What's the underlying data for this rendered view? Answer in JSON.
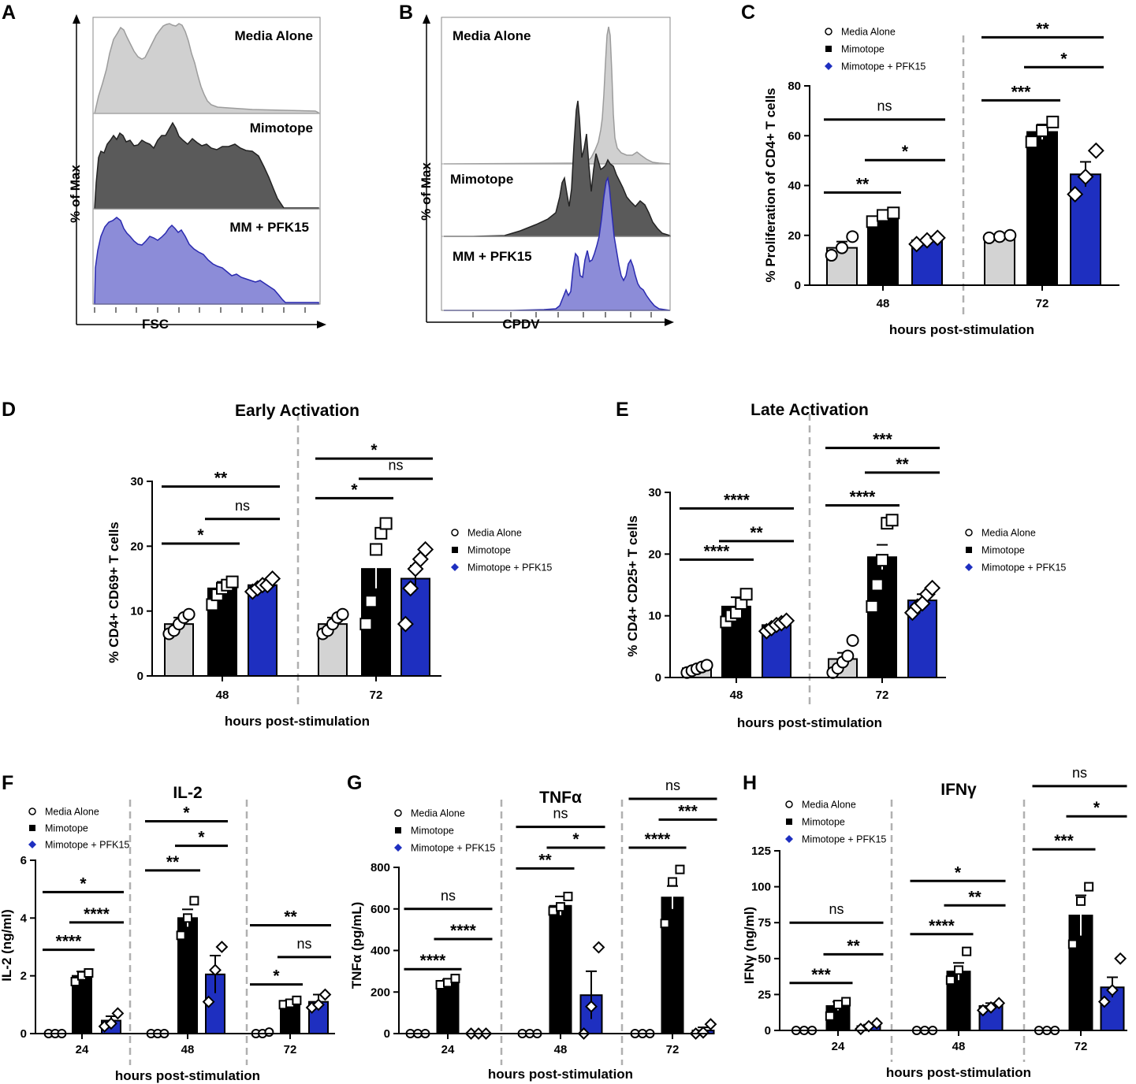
{
  "colors": {
    "media": "#d3d3d3",
    "mimotope": "#000000",
    "pfk15": "#1e2fc0",
    "hist_media": "#d0d0d0",
    "hist_media_line": "#9c9c9c",
    "hist_mimotope": "#5a5a5a",
    "hist_pfk15": "#8c8cd8",
    "hist_pfk15_line": "#2a2ab0",
    "divider": "#b0b0b0"
  },
  "legend": [
    "Media Alone",
    "Mimotope",
    "Mimotope + PFK15"
  ],
  "hist_panels": {
    "A": {
      "label": "A",
      "ylabel": "% of Max",
      "xlabel": "FSC",
      "rows": [
        "Media Alone",
        "Mimotope",
        "MM + PFK15"
      ]
    },
    "B": {
      "label": "B",
      "ylabel": "% of Max",
      "xlabel": "CPDV",
      "rows": [
        "Media Alone",
        "Mimotope",
        "MM + PFK15"
      ]
    }
  },
  "chart_data": [
    {
      "panel": "C",
      "type": "bar",
      "title": "",
      "ylabel": "% Proliferation of CD4+ T cells",
      "xlabel": "hours post-stimulation",
      "ylim": [
        0,
        80
      ],
      "yticks": [
        "0",
        "20",
        "40",
        "60",
        "80"
      ],
      "groups": [
        "48",
        "72"
      ],
      "series_names": [
        "Media Alone",
        "Mimotope",
        "Mimotope + PFK15"
      ],
      "values": [
        [
          15,
          27.5,
          18
        ],
        [
          19.5,
          61.5,
          44.5
        ]
      ],
      "errors": [
        [
          2.5,
          2,
          1
        ],
        [
          0.5,
          3,
          5
        ]
      ],
      "points": [
        [
          [
            12,
            15,
            19.5
          ],
          [
            25.5,
            28,
            29
          ],
          [
            16.5,
            18,
            19
          ]
        ],
        [
          [
            19,
            19.5,
            20
          ],
          [
            57.5,
            62,
            65.5
          ],
          [
            36.5,
            43.5,
            54
          ]
        ]
      ],
      "significance": [
        {
          "label": "ns",
          "g1": 0,
          "s1": 0,
          "g2": 0,
          "s2": 2,
          "y": 66.5
        },
        {
          "label": "**",
          "g1": 0,
          "s1": 0,
          "g2": 0,
          "s2": 1,
          "y": 37.2
        },
        {
          "label": "*",
          "g1": 0,
          "s1": 1,
          "g2": 0,
          "s2": 2,
          "y": 50.2
        },
        {
          "label": "***",
          "g1": 1,
          "s1": 0,
          "g2": 1,
          "s2": 1,
          "y": 74.2
        },
        {
          "label": "*",
          "g1": 1,
          "s1": 1,
          "g2": 1,
          "s2": 2,
          "y": 87.5
        },
        {
          "label": "**",
          "g1": 1,
          "s1": 0,
          "g2": 1,
          "s2": 2,
          "y": 99.5
        }
      ]
    },
    {
      "panel": "D",
      "type": "bar",
      "title": "Early Activation",
      "ylabel": "% CD4+ CD69+ T cells",
      "xlabel": "hours post-stimulation",
      "ylim": [
        0,
        30
      ],
      "yticks": [
        "0",
        "10",
        "20",
        "30"
      ],
      "groups": [
        "48",
        "72"
      ],
      "series_names": [
        "Media Alone",
        "Mimotope",
        "Mimotope + PFK15"
      ],
      "values": [
        [
          8,
          13.5,
          14
        ],
        [
          8,
          16.5,
          15
        ]
      ],
      "errors": [
        [
          1,
          1,
          0.5
        ],
        [
          1,
          3,
          2
        ]
      ],
      "points": [
        [
          [
            6.5,
            7,
            8,
            9,
            9.5
          ],
          [
            11,
            12.5,
            13.5,
            14,
            14.5
          ],
          [
            13,
            13.5,
            14,
            14,
            15
          ]
        ],
        [
          [
            6.5,
            7,
            8,
            9,
            9.5
          ],
          [
            8,
            11.5,
            19.5,
            22,
            23.5
          ],
          [
            8,
            13.5,
            16.5,
            18,
            19.5
          ]
        ]
      ],
      "significance": [
        {
          "label": "*",
          "g1": 0,
          "s1": 0,
          "g2": 0,
          "s2": 1,
          "y": 20.4
        },
        {
          "label": "ns",
          "g1": 0,
          "s1": 1,
          "g2": 0,
          "s2": 2,
          "y": 24.2
        },
        {
          "label": "**",
          "g1": 0,
          "s1": 0,
          "g2": 0,
          "s2": 2,
          "y": 29.2
        },
        {
          "label": "*",
          "g1": 1,
          "s1": 0,
          "g2": 1,
          "s2": 1,
          "y": 27.4
        },
        {
          "label": "ns",
          "g1": 1,
          "s1": 1,
          "g2": 1,
          "s2": 2,
          "y": 30.4
        },
        {
          "label": "*",
          "g1": 1,
          "s1": 0,
          "g2": 1,
          "s2": 2,
          "y": 33.5
        }
      ]
    },
    {
      "panel": "E",
      "type": "bar",
      "title": "Late Activation",
      "ylabel": "% CD4+ CD25+ T cells",
      "xlabel": "hours post-stimulation",
      "ylim": [
        0,
        30
      ],
      "yticks": [
        "0",
        "10",
        "20",
        "30"
      ],
      "groups": [
        "48",
        "72"
      ],
      "series_names": [
        "Media Alone",
        "Mimotope",
        "Mimotope + PFK15"
      ],
      "values": [
        [
          1.5,
          11.5,
          8.5
        ],
        [
          3,
          19.5,
          12.5
        ]
      ],
      "errors": [
        [
          0.5,
          1.5,
          0.5
        ],
        [
          1,
          2,
          1
        ]
      ],
      "points": [
        [
          [
            0.8,
            1.1,
            1.4,
            1.7,
            2
          ],
          [
            9,
            10,
            10.5,
            12,
            13.5
          ],
          [
            7.5,
            8,
            8.5,
            8.8,
            9.2
          ]
        ],
        [
          [
            0.8,
            1.5,
            2.5,
            3.5,
            6
          ],
          [
            11.5,
            15,
            19,
            25,
            25.5
          ],
          [
            10.5,
            11.5,
            12,
            13.5,
            14.5
          ]
        ]
      ],
      "significance": [
        {
          "label": "****",
          "g1": 0,
          "s1": 0,
          "g2": 0,
          "s2": 1,
          "y": 19.1
        },
        {
          "label": "**",
          "g1": 0,
          "s1": 1,
          "g2": 0,
          "s2": 2,
          "y": 22.1
        },
        {
          "label": "****",
          "g1": 0,
          "s1": 0,
          "g2": 0,
          "s2": 2,
          "y": 27.4
        },
        {
          "label": "****",
          "g1": 1,
          "s1": 0,
          "g2": 1,
          "s2": 1,
          "y": 27.9
        },
        {
          "label": "**",
          "g1": 1,
          "s1": 1,
          "g2": 1,
          "s2": 2,
          "y": 33.2
        },
        {
          "label": "***",
          "g1": 1,
          "s1": 0,
          "g2": 1,
          "s2": 2,
          "y": 37.2
        }
      ]
    },
    {
      "panel": "F",
      "type": "bar",
      "title": "IL-2",
      "ylabel": "IL-2 (ng/ml)",
      "xlabel": "hours post-stimulation",
      "ylim": [
        0,
        6
      ],
      "yticks": [
        "0",
        "2",
        "4",
        "6"
      ],
      "groups": [
        "24",
        "48",
        "72"
      ],
      "series_names": [
        "Media Alone",
        "Mimotope",
        "Mimotope + PFK15"
      ],
      "values": [
        [
          0,
          2,
          0.45
        ],
        [
          0,
          4,
          2.05
        ],
        [
          0,
          1.05,
          1.1
        ]
      ],
      "errors": [
        [
          0,
          0.15,
          0.15
        ],
        [
          0,
          0.3,
          0.65
        ],
        [
          0,
          0.1,
          0.25
        ]
      ],
      "points": [
        [
          [
            0,
            0,
            0
          ],
          [
            1.8,
            2,
            2.1
          ],
          [
            0.25,
            0.35,
            0.7
          ]
        ],
        [
          [
            0,
            0,
            0
          ],
          [
            3.4,
            4,
            4.6
          ],
          [
            1.1,
            2.2,
            3
          ]
        ],
        [
          [
            0,
            0,
            0.05
          ],
          [
            1,
            1.05,
            1.15
          ],
          [
            0.9,
            1,
            1.35
          ]
        ]
      ],
      "significance": [
        {
          "label": "****",
          "g1": 0,
          "s1": 0,
          "g2": 0,
          "s2": 1,
          "y": 2.9
        },
        {
          "label": "****",
          "g1": 0,
          "s1": 1,
          "g2": 0,
          "s2": 2,
          "y": 3.85
        },
        {
          "label": "*",
          "g1": 0,
          "s1": 0,
          "g2": 0,
          "s2": 2,
          "y": 4.9
        },
        {
          "label": "**",
          "g1": 1,
          "s1": 0,
          "g2": 1,
          "s2": 1,
          "y": 5.65
        },
        {
          "label": "*",
          "g1": 1,
          "s1": 1,
          "g2": 1,
          "s2": 2,
          "y": 6.5
        },
        {
          "label": "*",
          "g1": 1,
          "s1": 0,
          "g2": 1,
          "s2": 2,
          "y": 7.35
        },
        {
          "label": "*",
          "g1": 2,
          "s1": 0,
          "g2": 2,
          "s2": 1,
          "y": 1.7
        },
        {
          "label": "ns",
          "g1": 2,
          "s1": 1,
          "g2": 2,
          "s2": 2,
          "y": 2.65
        },
        {
          "label": "**",
          "g1": 2,
          "s1": 0,
          "g2": 2,
          "s2": 2,
          "y": 3.75
        }
      ]
    },
    {
      "panel": "G",
      "type": "bar",
      "title": "TNFα",
      "ylabel": "TNFα (pg/mL)",
      "xlabel": "hours post-stimulation",
      "ylim": [
        0,
        800
      ],
      "yticks": [
        "0",
        "200",
        "400",
        "600",
        "800"
      ],
      "groups": [
        "24",
        "48",
        "72"
      ],
      "series_names": [
        "Media Alone",
        "Mimotope",
        "Mimotope + PFK15"
      ],
      "values": [
        [
          0,
          245,
          0
        ],
        [
          0,
          615,
          185
        ],
        [
          0,
          655,
          15
        ]
      ],
      "errors": [
        [
          0,
          15,
          0
        ],
        [
          0,
          45,
          115
        ],
        [
          0,
          55,
          15
        ]
      ],
      "points": [
        [
          [
            0,
            0,
            0
          ],
          [
            235,
            245,
            265
          ],
          [
            0,
            0,
            0
          ]
        ],
        [
          [
            0,
            0,
            0
          ],
          [
            590,
            610,
            660
          ],
          [
            0,
            130,
            415
          ]
        ],
        [
          [
            0,
            0,
            0
          ],
          [
            530,
            730,
            790
          ],
          [
            0,
            5,
            45
          ]
        ]
      ],
      "significance": [
        {
          "label": "****",
          "g1": 0,
          "s1": 0,
          "g2": 0,
          "s2": 1,
          "y": 310
        },
        {
          "label": "****",
          "g1": 0,
          "s1": 1,
          "g2": 0,
          "s2": 2,
          "y": 455
        },
        {
          "label": "ns",
          "g1": 0,
          "s1": 0,
          "g2": 0,
          "s2": 2,
          "y": 600
        },
        {
          "label": "**",
          "g1": 1,
          "s1": 0,
          "g2": 1,
          "s2": 1,
          "y": 795
        },
        {
          "label": "*",
          "g1": 1,
          "s1": 1,
          "g2": 1,
          "s2": 2,
          "y": 895
        },
        {
          "label": "ns",
          "g1": 1,
          "s1": 0,
          "g2": 1,
          "s2": 2,
          "y": 995
        },
        {
          "label": "****",
          "g1": 2,
          "s1": 0,
          "g2": 2,
          "s2": 1,
          "y": 895
        },
        {
          "label": "***",
          "g1": 2,
          "s1": 1,
          "g2": 2,
          "s2": 2,
          "y": 1030
        },
        {
          "label": "ns",
          "g1": 2,
          "s1": 0,
          "g2": 2,
          "s2": 2,
          "y": 1130
        }
      ]
    },
    {
      "panel": "H",
      "type": "bar",
      "title": "IFNγ",
      "ylabel": "IFNγ (ng/ml)",
      "xlabel": "hours post-stimulation",
      "ylim": [
        0,
        125
      ],
      "yticks": [
        "0",
        "25",
        "50",
        "75",
        "100",
        "125"
      ],
      "groups": [
        "24",
        "48",
        "72"
      ],
      "series_names": [
        "Media Alone",
        "Mimotope",
        "Mimotope + PFK15"
      ],
      "values": [
        [
          0,
          17,
          3
        ],
        [
          0,
          41,
          17
        ],
        [
          0,
          80,
          30
        ]
      ],
      "errors": [
        [
          0,
          3,
          1
        ],
        [
          0,
          6,
          2
        ],
        [
          0,
          14,
          7
        ]
      ],
      "points": [
        [
          [
            0,
            0,
            0
          ],
          [
            10,
            18,
            20
          ],
          [
            1,
            3,
            5
          ]
        ],
        [
          [
            0,
            0,
            0
          ],
          [
            35,
            42,
            55
          ],
          [
            14,
            16,
            19
          ]
        ],
        [
          [
            0,
            0,
            0
          ],
          [
            60,
            90,
            100
          ],
          [
            20,
            28,
            50
          ]
        ]
      ],
      "significance": [
        {
          "label": "***",
          "g1": 0,
          "s1": 0,
          "g2": 0,
          "s2": 1,
          "y": 33
        },
        {
          "label": "**",
          "g1": 0,
          "s1": 1,
          "g2": 0,
          "s2": 2,
          "y": 53
        },
        {
          "label": "ns",
          "g1": 0,
          "s1": 0,
          "g2": 0,
          "s2": 2,
          "y": 75
        },
        {
          "label": "****",
          "g1": 1,
          "s1": 0,
          "g2": 1,
          "s2": 1,
          "y": 67
        },
        {
          "label": "**",
          "g1": 1,
          "s1": 1,
          "g2": 1,
          "s2": 2,
          "y": 87
        },
        {
          "label": "*",
          "g1": 1,
          "s1": 0,
          "g2": 1,
          "s2": 2,
          "y": 104
        },
        {
          "label": "***",
          "g1": 2,
          "s1": 0,
          "g2": 2,
          "s2": 1,
          "y": 126
        },
        {
          "label": "*",
          "g1": 2,
          "s1": 1,
          "g2": 2,
          "s2": 2,
          "y": 149
        },
        {
          "label": "ns",
          "g1": 2,
          "s1": 0,
          "g2": 2,
          "s2": 2,
          "y": 170
        }
      ]
    }
  ]
}
